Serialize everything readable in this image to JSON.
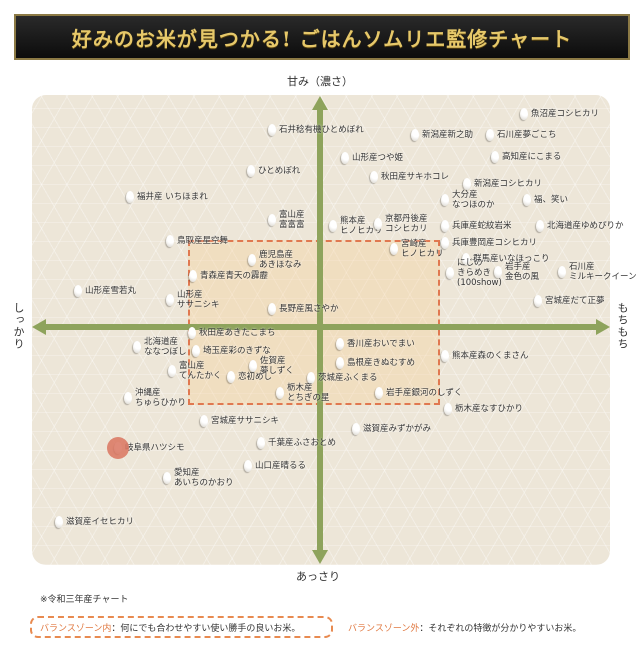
{
  "title": "好みのお米が見つかる! ごはんソムリエ監修チャート",
  "axes": {
    "top": "甘み（濃さ）",
    "bottom": "あっさり",
    "left": "しっかり",
    "right": "もちもち"
  },
  "colors": {
    "axis": "#8ea35c",
    "zone_border": "#e07850",
    "highlight": "#d9745f",
    "banner": "#111111",
    "banner_text": "#e6c86a"
  },
  "items": [
    {
      "label": "石井稔有機ひとめぼれ"
    },
    {
      "label": "魚沼産コシヒカリ"
    },
    {
      "label": "新潟産新之助"
    },
    {
      "label": "石川産夢ごこち"
    },
    {
      "label": "山形産つや姫"
    },
    {
      "label": "高知産にこまる"
    },
    {
      "label": "ひとめぼれ"
    },
    {
      "label": "秋田産サキホコレ"
    },
    {
      "label": "新潟産コシヒカリ"
    },
    {
      "label": "福井産 いちほまれ"
    },
    {
      "label": "大分産\nなつほのか"
    },
    {
      "label": "福、笑い"
    },
    {
      "label": "富山産\n富富富"
    },
    {
      "label": "熊本産\nヒノヒカリ"
    },
    {
      "label": "京都丹後産\nコシヒカリ"
    },
    {
      "label": "兵庫産蛇紋岩米"
    },
    {
      "label": "北海道産ゆめぴりか"
    },
    {
      "label": "鳥取産星空舞"
    },
    {
      "label": "兵庫豊岡産コシヒカリ"
    },
    {
      "label": "鹿児島産\nあきほなみ"
    },
    {
      "label": "宮崎産\nヒノヒカリ"
    },
    {
      "label": "群馬産いなほっこり"
    },
    {
      "label": "青森産青天の霹靂"
    },
    {
      "label": "にじの\nきらめき\n(100show)"
    },
    {
      "label": "岩手産\n金色の風"
    },
    {
      "label": "石川産\nミルキークイーン"
    },
    {
      "label": "山形産雪若丸"
    },
    {
      "label": "山形産\nササニシキ"
    },
    {
      "label": "長野産風さやか"
    },
    {
      "label": "宮城産だて正夢"
    },
    {
      "label": "秋田産あきたこまち"
    },
    {
      "label": "北海道産\nななつぼし"
    },
    {
      "label": "埼玉産彩のきずな"
    },
    {
      "label": "香川産おいでまい"
    },
    {
      "label": "熊本産森のくまさん"
    },
    {
      "label": "島根産きぬむすめ"
    },
    {
      "label": "富山産\nてんたかく"
    },
    {
      "label": "恋初めし"
    },
    {
      "label": "佐賀産\n夢しずく"
    },
    {
      "label": "茨城産ふくまる"
    },
    {
      "label": "栃木産\nとちぎの星"
    },
    {
      "label": "岩手産銀河のしずく"
    },
    {
      "label": "沖縄産\nちゅらひかり"
    },
    {
      "label": "栃木産なすひかり"
    },
    {
      "label": "宮城産ササニシキ"
    },
    {
      "label": "滋賀産みずかがみ"
    },
    {
      "label": "千葉産ふさおとめ"
    },
    {
      "label": "岐阜県ハツシモ",
      "highlighted": true
    },
    {
      "label": "山口産晴るる"
    },
    {
      "label": "愛知産\nあいちのかおり"
    },
    {
      "label": "滋賀産イセヒカリ"
    }
  ],
  "footer": {
    "note": "※令和三年産チャート",
    "inside_label": "バランスゾーン内",
    "inside_text": "：何にでも合わせやすい使い勝手の良いお米。",
    "outside_label": "バランスゾーン外",
    "outside_text": "：それぞれの特徴が分かりやすいお米。"
  }
}
